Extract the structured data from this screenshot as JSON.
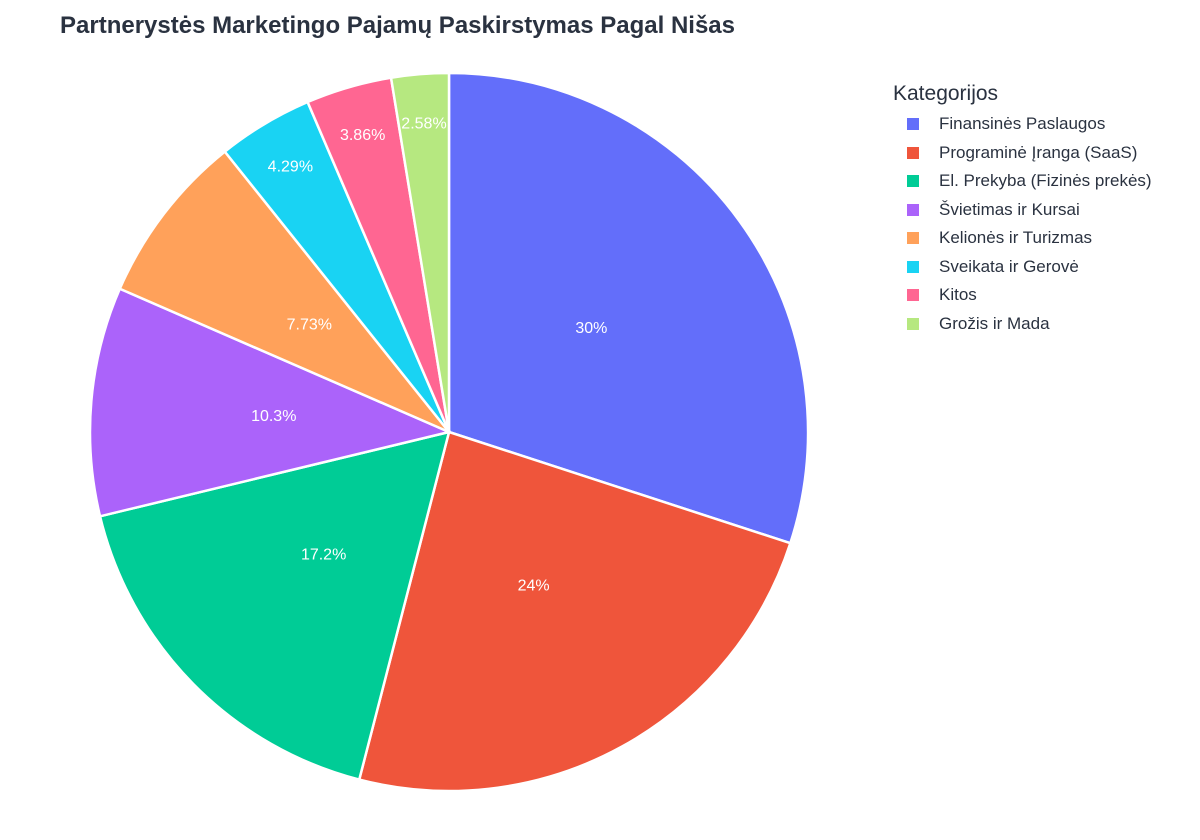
{
  "chart_data": {
    "type": "pie",
    "title": "Partnerystės Marketingo Pajamų Paskirstymas Pagal Nišas",
    "legend_title": "Kategorijos",
    "legend_position": "right",
    "categories": [
      "Finansinės Paslaugos",
      "Programinė Įranga (SaaS)",
      "El. Prekyba (Fizinės prekės)",
      "Švietimas ir Kursai",
      "Kelionės ir Turizmas",
      "Sveikata ir Gerovė",
      "Kitos",
      "Grožis ir Mada"
    ],
    "values": [
      30,
      24,
      17.2,
      10.3,
      7.73,
      4.29,
      3.86,
      2.58
    ],
    "labels": [
      "30%",
      "24%",
      "17.2%",
      "10.3%",
      "7.73%",
      "4.29%",
      "3.86%",
      "2.58%"
    ],
    "colors": [
      "#636efa",
      "#ef553b",
      "#00cc96",
      "#ab63fa",
      "#ffa15a",
      "#19d3f3",
      "#ff6692",
      "#b6e880"
    ]
  }
}
